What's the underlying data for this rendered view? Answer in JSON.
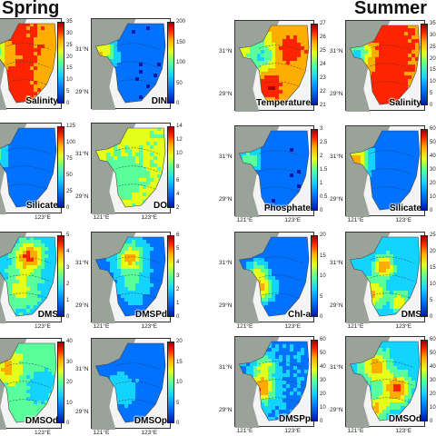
{
  "seasons": [
    {
      "title": "Spring",
      "panels": [
        {
          "label": "Salinity",
          "ticks": [
            "35",
            "30",
            "25",
            "20",
            "15",
            "10",
            "5",
            "0"
          ]
        },
        {
          "label": "DIN",
          "ticks": [
            "200",
            "150",
            "100",
            "50",
            "0"
          ]
        },
        {
          "label": "Silicate",
          "ticks": [
            "125",
            "100",
            "75",
            "50",
            "25",
            "0"
          ]
        },
        {
          "label": "DO",
          "ticks": [
            "14",
            "12",
            "10",
            "8",
            "6",
            "4",
            "2"
          ]
        },
        {
          "label": "DMS",
          "ticks": [
            "5",
            "4",
            "3",
            "2",
            "1",
            "0"
          ]
        },
        {
          "label": "DMSPd",
          "ticks": [
            "6",
            "5",
            "4",
            "3",
            "2",
            "1",
            "0"
          ]
        },
        {
          "label": "DMSOd",
          "ticks": [
            "40",
            "30",
            "20",
            "10",
            "0"
          ]
        },
        {
          "label": "DMSOp",
          "ticks": [
            "20",
            "15",
            "10",
            "5",
            "0"
          ]
        }
      ]
    },
    {
      "title": "Summer",
      "panels": [
        {
          "label": "Temperature",
          "ticks": [
            "27",
            "26",
            "25",
            "24",
            "23",
            "22",
            "21"
          ]
        },
        {
          "label": "Salinity",
          "ticks": [
            "35",
            "30",
            "25",
            "20",
            "15",
            "10",
            "5",
            "0"
          ]
        },
        {
          "label": "Phosphate",
          "ticks": [
            "3",
            "2.5",
            "2",
            "1.5",
            "1",
            "0.5",
            "0"
          ]
        },
        {
          "label": "Silicate",
          "ticks": [
            "60",
            "50",
            "40",
            "30",
            "20",
            "10",
            "0"
          ]
        },
        {
          "label": "Chl-a",
          "ticks": [
            "20",
            "15",
            "10",
            "5",
            "0"
          ]
        },
        {
          "label": "DMS",
          "ticks": [
            "25",
            "20",
            "15",
            "10",
            "5",
            "0"
          ]
        },
        {
          "label": "DMSPp",
          "ticks": [
            "60",
            "50",
            "40",
            "30",
            "20",
            "10",
            "0"
          ]
        },
        {
          "label": "DMSOd",
          "ticks": [
            "60",
            "50",
            "40",
            "30",
            "20",
            "10",
            "0"
          ]
        }
      ]
    }
  ],
  "axes": {
    "lat_31": "31°N",
    "lat_29": "29°N",
    "lon_121": "121°E",
    "lon_123": "123°E"
  },
  "colormap": [
    "#0018a8",
    "#0072ff",
    "#13d4ff",
    "#59ff9a",
    "#e4ff1a",
    "#ffad00",
    "#ff2400",
    "#a00000"
  ]
}
